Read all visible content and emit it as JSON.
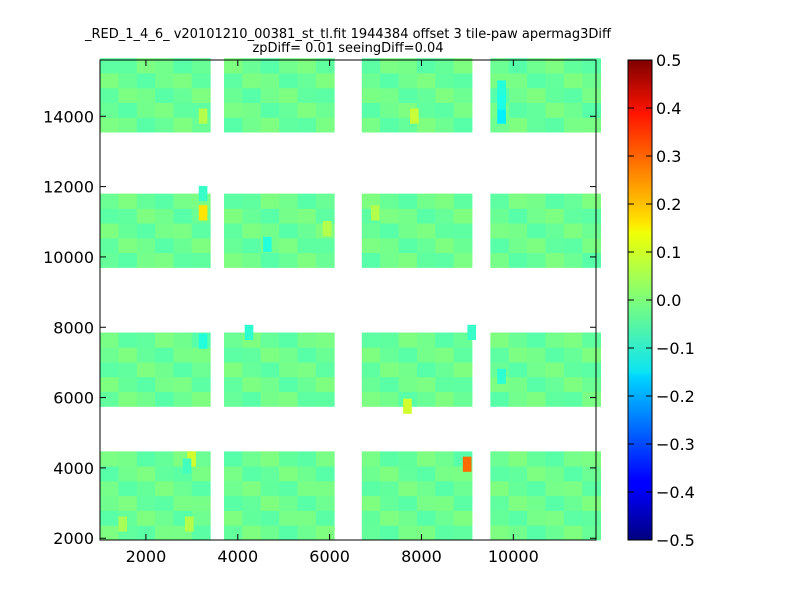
{
  "chart_data": {
    "type": "heatmap",
    "title_line1": "_RED_1_4_6_ v20101210_00381_st_tl.fit 1944384 offset 3 tile-paw apermag3Diff",
    "title_line2": "zpDiff= 0.01 seeingDiff=0.04",
    "xlim": [
      1000,
      11800
    ],
    "ylim": [
      1950,
      15600
    ],
    "x_ticks": [
      2000,
      4000,
      6000,
      8000,
      10000
    ],
    "y_ticks": [
      2000,
      4000,
      6000,
      8000,
      10000,
      12000,
      14000
    ],
    "colorbar": {
      "range": [
        -0.5,
        0.5
      ],
      "ticks": [
        "0.5",
        "0.4",
        "0.3",
        "0.2",
        "0.1",
        "0.0",
        "−0.1",
        "−0.2",
        "−0.3",
        "−0.4",
        "−0.5"
      ],
      "colormap": "jet"
    },
    "cell_size": [
      400,
      420
    ],
    "columns_x": [
      1000,
      1400,
      1800,
      2200,
      2600,
      3000,
      3700,
      4100,
      4500,
      4900,
      5300,
      5700,
      6700,
      7100,
      7500,
      7900,
      8300,
      8700,
      9500,
      9900,
      10300,
      10700,
      11100,
      11500
    ],
    "row_bands": [
      {
        "y_start": 1950,
        "rows": 6
      },
      {
        "y_start": 5750,
        "rows": 5
      },
      {
        "y_start": 9700,
        "rows": 5
      },
      {
        "y_start": 13550,
        "rows": 5
      }
    ],
    "base_value": -0.02,
    "special_cells": [
      {
        "x": 8900,
        "y": 3900,
        "value": 0.27
      },
      {
        "x": 3150,
        "y": 11050,
        "value": 0.15
      },
      {
        "x": 7600,
        "y": 5550,
        "value": 0.08
      },
      {
        "x": 5850,
        "y": 10600,
        "value": 0.05
      },
      {
        "x": 9650,
        "y": 13800,
        "value": -0.14
      },
      {
        "x": 9650,
        "y": 14200,
        "value": -0.1
      },
      {
        "x": 9650,
        "y": 14600,
        "value": -0.09
      },
      {
        "x": 4550,
        "y": 10150,
        "value": -0.09
      },
      {
        "x": 3150,
        "y": 7400,
        "value": -0.09
      },
      {
        "x": 4150,
        "y": 7650,
        "value": -0.08
      },
      {
        "x": 9650,
        "y": 6400,
        "value": -0.08
      },
      {
        "x": 3150,
        "y": 11600,
        "value": -0.07
      },
      {
        "x": 2900,
        "y": 4050,
        "value": 0.08
      },
      {
        "x": 2800,
        "y": 3850,
        "value": -0.06
      },
      {
        "x": 7750,
        "y": 13800,
        "value": 0.07
      },
      {
        "x": 3150,
        "y": 13800,
        "value": 0.05
      },
      {
        "x": 6900,
        "y": 11050,
        "value": 0.05
      },
      {
        "x": 2850,
        "y": 2200,
        "value": 0.05
      },
      {
        "x": 1400,
        "y": 2200,
        "value": 0.04
      },
      {
        "x": 9000,
        "y": 7650,
        "value": -0.07
      }
    ]
  }
}
